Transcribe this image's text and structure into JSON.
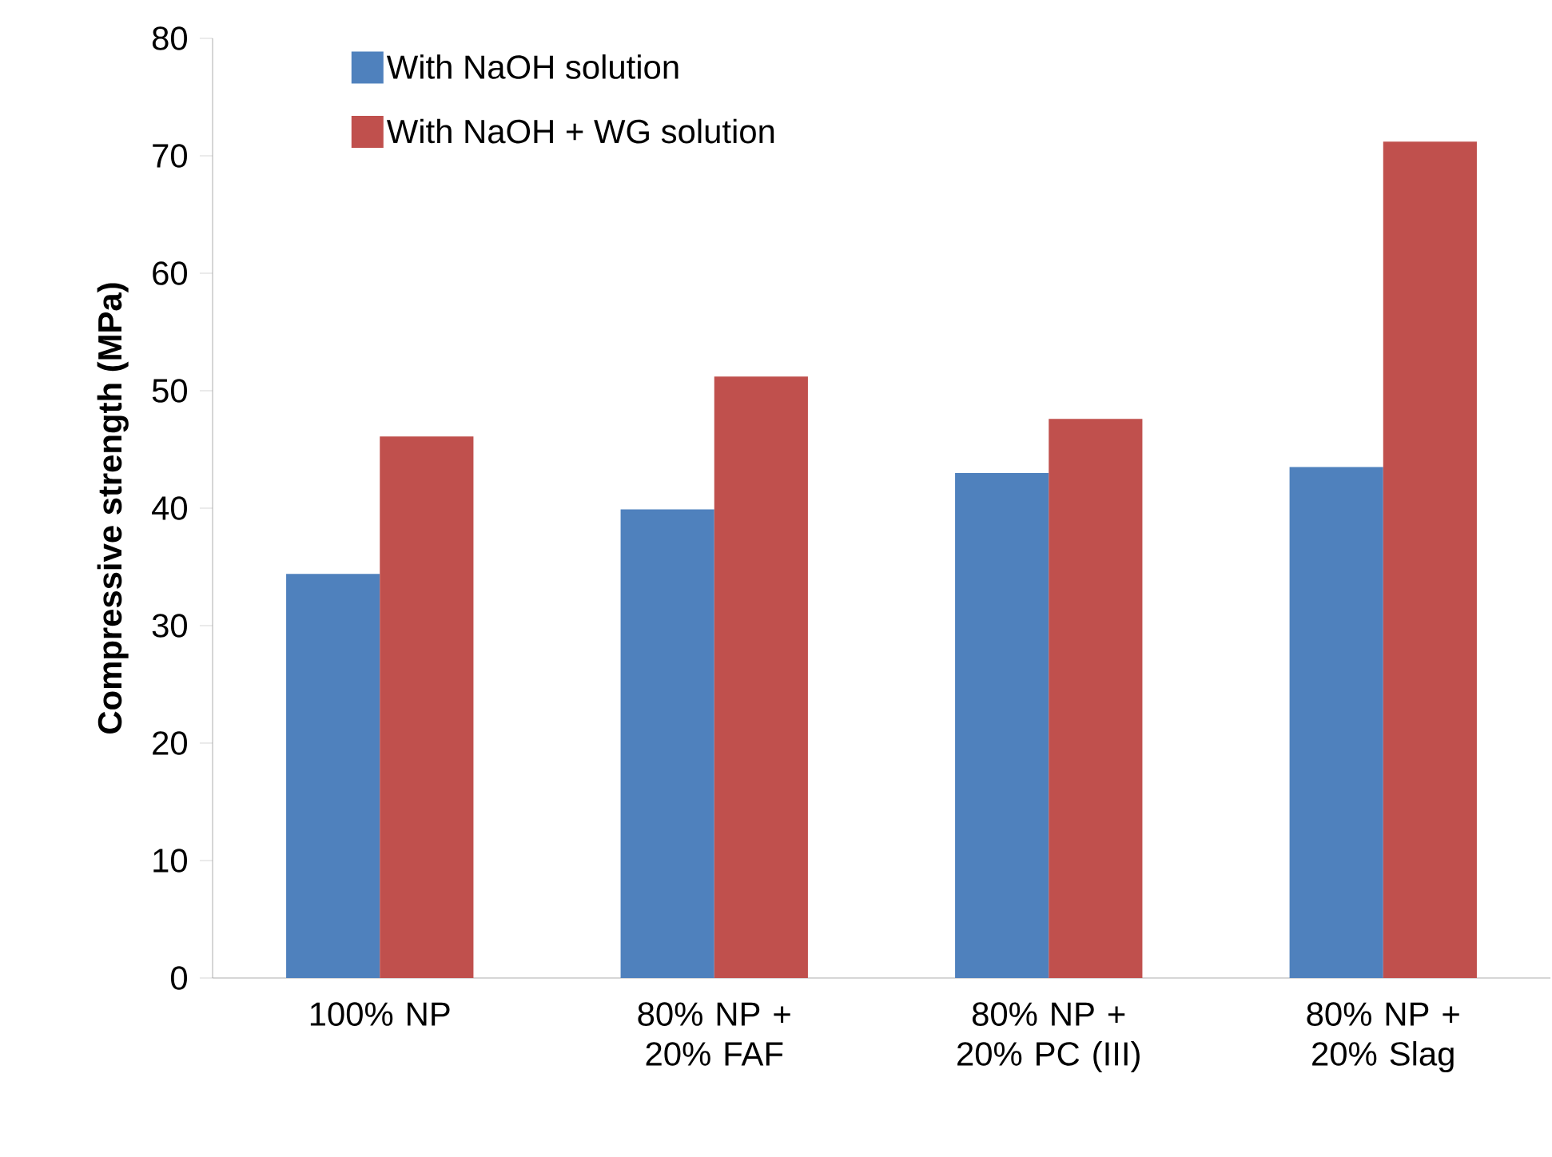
{
  "chart_data": {
    "type": "bar",
    "ylabel": "Compressive strength (MPa)",
    "categories": [
      "100% NP",
      "80% NP + 20% FAF",
      "80% NP + 20% PC (III)",
      "80% NP + 20% Slag"
    ],
    "series": [
      {
        "name": "With NaOH solution",
        "color": "#4f81bd",
        "values": [
          34.4,
          39.9,
          43.0,
          43.5
        ]
      },
      {
        "name": "With NaOH + WG solution",
        "color": "#c0504d",
        "values": [
          46.1,
          51.2,
          47.6,
          71.2
        ]
      }
    ],
    "ylim": [
      0,
      80
    ],
    "yticks": [
      0,
      10,
      20,
      30,
      40,
      50,
      60,
      70,
      80
    ],
    "grid": false,
    "legend": "top left"
  }
}
